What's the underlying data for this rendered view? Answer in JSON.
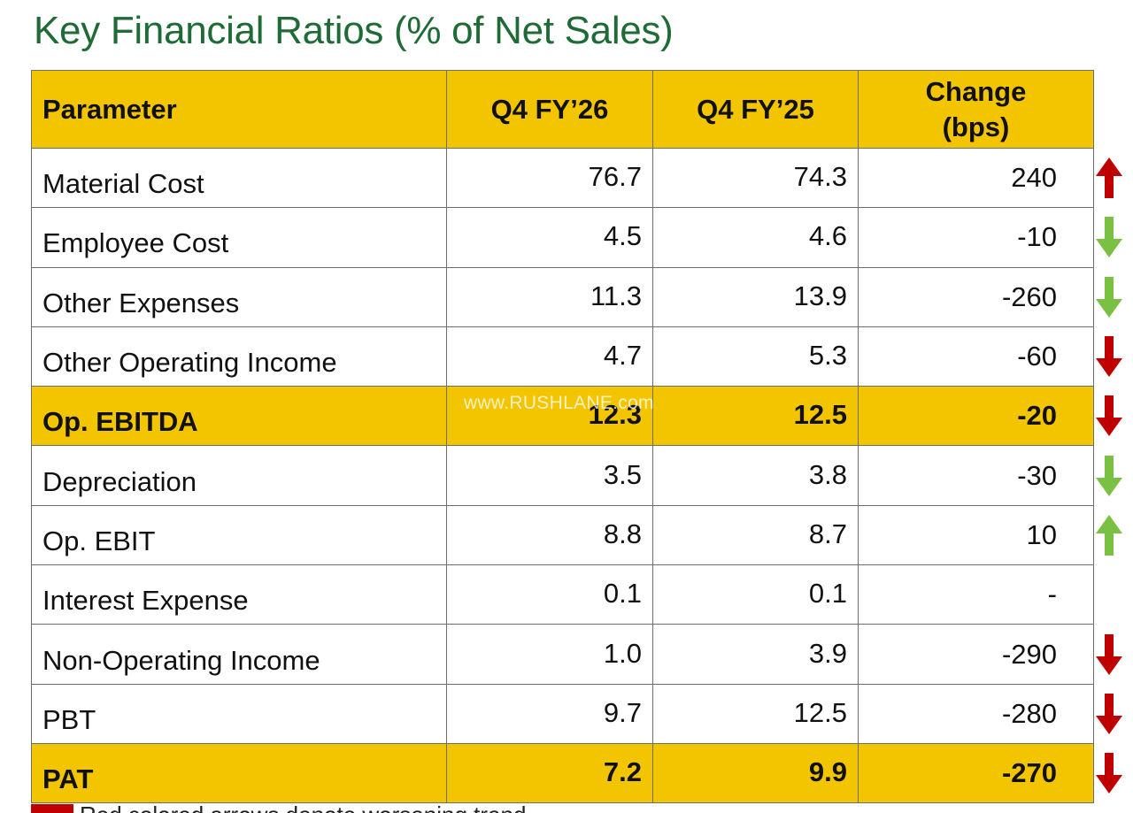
{
  "title": "Key Financial Ratios (% of Net Sales)",
  "watermark": "www.RUSHLANE.com",
  "legend": {
    "text": "Red colored arrows denote worsening trend",
    "color": "#c00000"
  },
  "colors": {
    "title": "#1e6b35",
    "header_bg": "#f2c500",
    "arrow_red": "#c00000",
    "arrow_green": "#7ac143"
  },
  "table": {
    "headers": [
      "Parameter",
      "Q4 FY’26",
      "Q4 FY’25",
      "Change (bps)"
    ],
    "rows": [
      {
        "param": "Material Cost",
        "q4fy26": "76.7",
        "q4fy25": "74.3",
        "change": "240",
        "arrow": "up",
        "arrow_color": "red",
        "highlight": false
      },
      {
        "param": "Employee Cost",
        "q4fy26": "4.5",
        "q4fy25": "4.6",
        "change": "-10",
        "arrow": "down",
        "arrow_color": "green",
        "highlight": false
      },
      {
        "param": "Other Expenses",
        "q4fy26": "11.3",
        "q4fy25": "13.9",
        "change": "-260",
        "arrow": "down",
        "arrow_color": "green",
        "highlight": false
      },
      {
        "param": "Other Operating Income",
        "q4fy26": "4.7",
        "q4fy25": "5.3",
        "change": "-60",
        "arrow": "down",
        "arrow_color": "red",
        "highlight": false
      },
      {
        "param": "Op. EBITDA",
        "q4fy26": "12.3",
        "q4fy25": "12.5",
        "change": "-20",
        "arrow": "down",
        "arrow_color": "red",
        "highlight": true
      },
      {
        "param": "Depreciation",
        "q4fy26": "3.5",
        "q4fy25": "3.8",
        "change": "-30",
        "arrow": "down",
        "arrow_color": "green",
        "highlight": false
      },
      {
        "param": "Op. EBIT",
        "q4fy26": "8.8",
        "q4fy25": "8.7",
        "change": "10",
        "arrow": "up",
        "arrow_color": "green",
        "highlight": false
      },
      {
        "param": "Interest Expense",
        "q4fy26": "0.1",
        "q4fy25": "0.1",
        "change": "-",
        "arrow": "none",
        "arrow_color": "",
        "highlight": false
      },
      {
        "param": "Non-Operating Income",
        "q4fy26": "1.0",
        "q4fy25": "3.9",
        "change": "-290",
        "arrow": "down",
        "arrow_color": "red",
        "highlight": false
      },
      {
        "param": "PBT",
        "q4fy26": "9.7",
        "q4fy25": "12.5",
        "change": "-280",
        "arrow": "down",
        "arrow_color": "red",
        "highlight": false
      },
      {
        "param": "PAT",
        "q4fy26": "7.2",
        "q4fy25": "9.9",
        "change": "-270",
        "arrow": "down",
        "arrow_color": "red",
        "highlight": true
      }
    ]
  }
}
